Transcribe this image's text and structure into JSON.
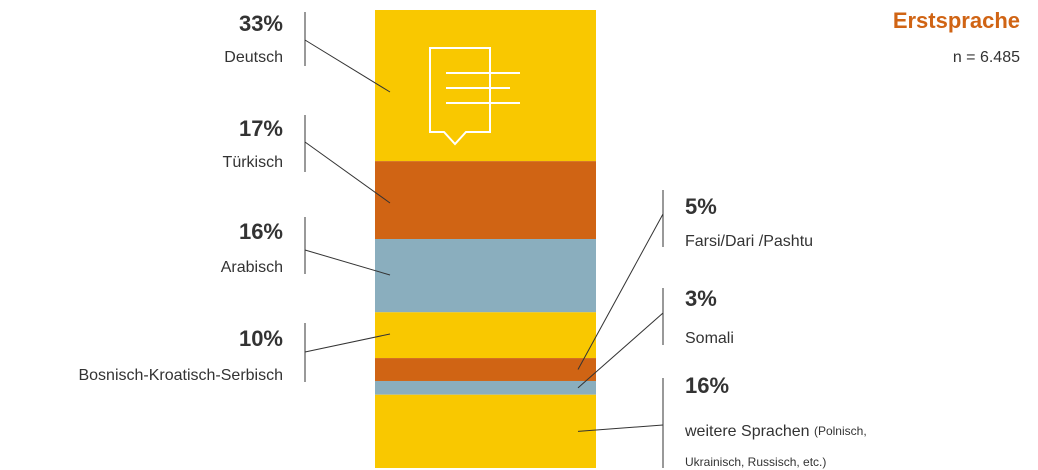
{
  "chart_data": {
    "type": "stacked-bar",
    "title": "Erstsprache",
    "subtitle": "n = 6.485",
    "segments": [
      {
        "name": "Deutsch",
        "value": 33,
        "value_label": "33%",
        "color": "#f9c800"
      },
      {
        "name": "Türkisch",
        "value": 17,
        "value_label": "17%",
        "color": "#d06414"
      },
      {
        "name": "Arabisch",
        "value": 16,
        "value_label": "16%",
        "color": "#8aaebe"
      },
      {
        "name": "Bosnisch-Kroatisch-Serbisch",
        "value": 10,
        "value_label": "10%",
        "color": "#f9c800"
      },
      {
        "name": "Farsi/Dari /Pashtu",
        "value": 5,
        "value_label": "5%",
        "color": "#d06414"
      },
      {
        "name": "Somali",
        "value": 3,
        "value_label": "3%",
        "color": "#8aaebe"
      },
      {
        "name": "weitere Sprachen",
        "note": [
          "(Polnisch,",
          "Ukrainisch, Russisch, etc.)"
        ],
        "value": 16,
        "value_label": "16%",
        "color": "#f9c800"
      }
    ]
  }
}
